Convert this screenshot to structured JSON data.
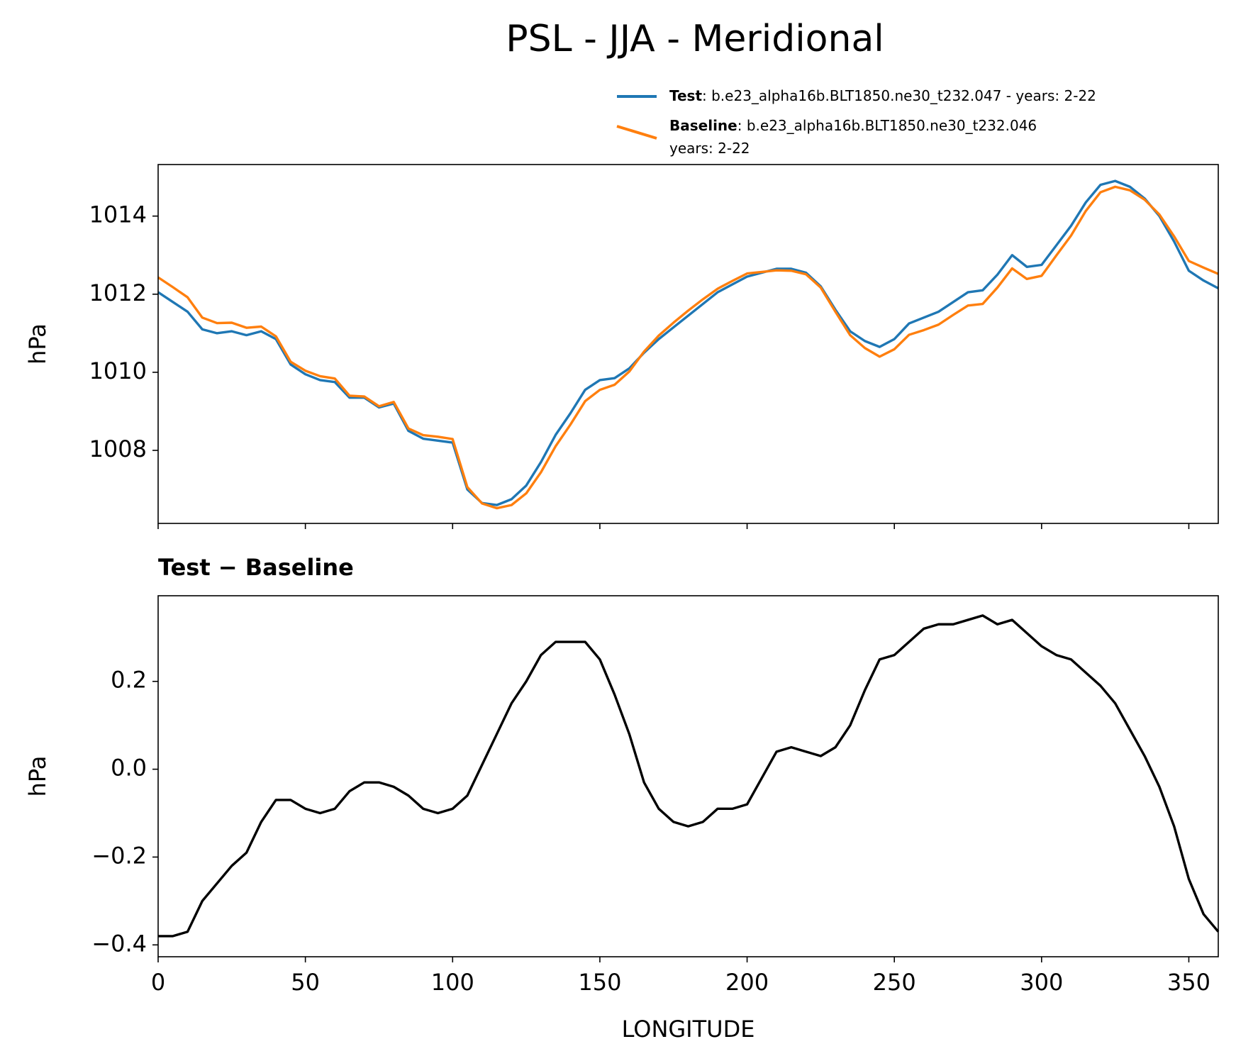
{
  "chart_data": [
    {
      "type": "line",
      "title": "PSL - JJA - Meridional",
      "ylabel": "hPa",
      "x": [
        0,
        5,
        10,
        15,
        20,
        25,
        30,
        35,
        40,
        45,
        50,
        55,
        60,
        65,
        70,
        75,
        80,
        85,
        90,
        95,
        100,
        105,
        110,
        115,
        120,
        125,
        130,
        135,
        140,
        145,
        150,
        155,
        160,
        165,
        170,
        175,
        180,
        185,
        190,
        195,
        200,
        205,
        210,
        215,
        220,
        225,
        230,
        235,
        240,
        245,
        250,
        255,
        260,
        265,
        270,
        275,
        280,
        285,
        290,
        295,
        300,
        305,
        310,
        315,
        320,
        325,
        330,
        335,
        340,
        345,
        350,
        355,
        360
      ],
      "series": [
        {
          "name": "Test",
          "description": [
            ": b.e23_alpha16b.BLT1850.ne30_t232.047 - years: 2-22"
          ],
          "color": "#1f77b4",
          "values": [
            1012.05,
            1011.8,
            1011.55,
            1011.1,
            1011.0,
            1011.05,
            1010.95,
            1011.05,
            1010.85,
            1010.2,
            1009.95,
            1009.8,
            1009.75,
            1009.35,
            1009.35,
            1009.1,
            1009.2,
            1008.5,
            1008.3,
            1008.25,
            1008.2,
            1007.0,
            1006.65,
            1006.6,
            1006.75,
            1007.1,
            1007.7,
            1008.4,
            1008.95,
            1009.55,
            1009.8,
            1009.85,
            1010.1,
            1010.5,
            1010.85,
            1011.15,
            1011.45,
            1011.75,
            1012.05,
            1012.25,
            1012.45,
            1012.55,
            1012.65,
            1012.65,
            1012.55,
            1012.2,
            1011.6,
            1011.05,
            1010.8,
            1010.65,
            1010.85,
            1011.25,
            1011.4,
            1011.55,
            1011.8,
            1012.05,
            1012.1,
            1012.5,
            1013.0,
            1012.7,
            1012.75,
            1013.25,
            1013.75,
            1014.35,
            1014.8,
            1014.9,
            1014.75,
            1014.45,
            1014.0,
            1013.35,
            1012.6,
            1012.35,
            1012.15
          ]
        },
        {
          "name": "Baseline",
          "description": [
            ": b.e23_alpha16b.BLT1850.ne30_t232.046",
            "years: 2-22"
          ],
          "color": "#ff7f0e",
          "values": [
            1012.43,
            1012.18,
            1011.92,
            1011.4,
            1011.26,
            1011.27,
            1011.14,
            1011.17,
            1010.92,
            1010.27,
            1010.04,
            1009.9,
            1009.84,
            1009.4,
            1009.38,
            1009.13,
            1009.24,
            1008.56,
            1008.39,
            1008.35,
            1008.29,
            1007.06,
            1006.64,
            1006.52,
            1006.6,
            1006.9,
            1007.44,
            1008.11,
            1008.66,
            1009.26,
            1009.55,
            1009.68,
            1010.02,
            1010.53,
            1010.94,
            1011.27,
            1011.58,
            1011.87,
            1012.14,
            1012.34,
            1012.53,
            1012.57,
            1012.61,
            1012.6,
            1012.51,
            1012.17,
            1011.55,
            1010.95,
            1010.62,
            1010.4,
            1010.59,
            1010.96,
            1011.08,
            1011.22,
            1011.47,
            1011.71,
            1011.75,
            1012.17,
            1012.66,
            1012.39,
            1012.47,
            1012.99,
            1013.5,
            1014.13,
            1014.61,
            1014.75,
            1014.66,
            1014.42,
            1014.04,
            1013.48,
            1012.85,
            1012.68,
            1012.52
          ]
        }
      ],
      "xlim": [
        0,
        360
      ],
      "xticks": [
        0,
        50,
        100,
        150,
        200,
        250,
        300,
        350
      ],
      "show_xtick_labels": false,
      "ylim": [
        1006.13,
        1015.32
      ],
      "yticks": [
        1008,
        1010,
        1012,
        1014
      ],
      "legend": "upper right"
    },
    {
      "type": "line",
      "subtitle": "Test − Baseline",
      "ylabel": "hPa",
      "xlabel": "LONGITUDE",
      "x": [
        0,
        5,
        10,
        15,
        20,
        25,
        30,
        35,
        40,
        45,
        50,
        55,
        60,
        65,
        70,
        75,
        80,
        85,
        90,
        95,
        100,
        105,
        110,
        115,
        120,
        125,
        130,
        135,
        140,
        145,
        150,
        155,
        160,
        165,
        170,
        175,
        180,
        185,
        190,
        195,
        200,
        205,
        210,
        215,
        220,
        225,
        230,
        235,
        240,
        245,
        250,
        255,
        260,
        265,
        270,
        275,
        280,
        285,
        290,
        295,
        300,
        305,
        310,
        315,
        320,
        325,
        330,
        335,
        340,
        345,
        350,
        355,
        360
      ],
      "series": [
        {
          "color": "#000000",
          "values": [
            -0.38,
            -0.38,
            -0.37,
            -0.3,
            -0.26,
            -0.22,
            -0.19,
            -0.12,
            -0.07,
            -0.07,
            -0.09,
            -0.1,
            -0.09,
            -0.05,
            -0.03,
            -0.03,
            -0.04,
            -0.06,
            -0.09,
            -0.1,
            -0.09,
            -0.06,
            0.01,
            0.08,
            0.15,
            0.2,
            0.26,
            0.29,
            0.29,
            0.29,
            0.25,
            0.17,
            0.08,
            -0.03,
            -0.09,
            -0.12,
            -0.13,
            -0.12,
            -0.09,
            -0.09,
            -0.08,
            -0.02,
            0.04,
            0.05,
            0.04,
            0.03,
            0.05,
            0.1,
            0.18,
            0.25,
            0.26,
            0.29,
            0.32,
            0.33,
            0.33,
            0.34,
            0.35,
            0.33,
            0.34,
            0.31,
            0.28,
            0.26,
            0.25,
            0.22,
            0.19,
            0.15,
            0.09,
            0.03,
            -0.04,
            -0.13,
            -0.25,
            -0.33,
            -0.37
          ]
        }
      ],
      "xlim": [
        0,
        360
      ],
      "xticks": [
        0,
        50,
        100,
        150,
        200,
        250,
        300,
        350
      ],
      "show_xtick_labels": true,
      "ylim": [
        -0.427,
        0.395
      ],
      "yticks": [
        {
          "value": -0.4,
          "label": "−0.4"
        },
        {
          "value": -0.2,
          "label": "−0.2"
        },
        {
          "value": 0,
          "label": "0.0"
        },
        0.2
      ]
    }
  ]
}
